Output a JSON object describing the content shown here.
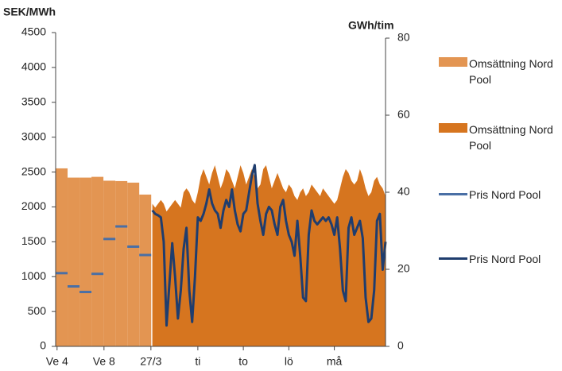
{
  "chart_data": {
    "type": "line",
    "ylabel": "SEK/MWh",
    "y2label": "GWh/tim",
    "xlim": [
      0,
      116
    ],
    "xticks": [
      {
        "value": 0.5,
        "label": "Ve 4"
      },
      {
        "value": 17,
        "label": "Ve 8"
      },
      {
        "value": 33.5,
        "label": "27/3"
      },
      {
        "value": 50,
        "label": "ti"
      },
      {
        "value": 66,
        "label": "to"
      },
      {
        "value": 82,
        "label": "lö"
      },
      {
        "value": 98,
        "label": "må"
      }
    ],
    "ylim": [
      0,
      4500
    ],
    "yticks": [
      0,
      500,
      1000,
      1500,
      2000,
      2500,
      3000,
      3500,
      4000,
      4500
    ],
    "y2lim": [
      0,
      80
    ],
    "y2ticks": [
      0,
      20,
      40,
      60,
      80
    ],
    "series": [
      {
        "name": "Omsättning Nord Pool",
        "type": "area",
        "step": true,
        "axis": "y2",
        "color": "#e39552",
        "x": [
          0,
          4.2,
          8.4,
          12.6,
          16.8,
          21,
          25.2,
          29.4
        ],
        "values": [
          46.2,
          43.8,
          43.8,
          44.0,
          43.0,
          42.9,
          42.5,
          39.4
        ]
      },
      {
        "name": "Omsättning Nord Pool",
        "type": "area",
        "step": false,
        "axis": "y2",
        "color": "#d6751f",
        "x": [
          34,
          35,
          36,
          37,
          38,
          39,
          40,
          41,
          42,
          43,
          44,
          45,
          46,
          47,
          48,
          49,
          50,
          51,
          52,
          53,
          54,
          55,
          56,
          57,
          58,
          59,
          60,
          61,
          62,
          63,
          64,
          65,
          66,
          67,
          68,
          69,
          70,
          71,
          72,
          73,
          74,
          75,
          76,
          77,
          78,
          79,
          80,
          81,
          82,
          83,
          84,
          85,
          86,
          87,
          88,
          89,
          90,
          91,
          92,
          93,
          94,
          95,
          96,
          97,
          98,
          99,
          100,
          101,
          102,
          103,
          104,
          105,
          106,
          107,
          108,
          109,
          110,
          111,
          112,
          113,
          114,
          115,
          116
        ],
        "values": [
          37,
          36,
          37,
          38,
          37,
          35,
          36,
          37,
          38,
          37,
          36,
          40,
          41,
          40,
          38,
          37,
          40,
          44,
          46,
          44,
          42,
          45,
          47,
          44,
          41,
          43,
          46,
          45,
          43,
          41,
          44,
          47,
          45,
          42,
          44,
          46,
          44,
          41,
          42,
          46,
          47,
          44,
          41,
          43,
          45,
          43,
          41,
          40,
          42,
          41,
          39,
          38,
          40,
          41,
          39,
          40,
          42,
          41,
          40,
          39,
          41,
          40,
          39,
          38,
          37,
          38,
          41,
          44,
          46,
          45,
          43,
          42,
          43,
          46,
          44,
          41,
          39,
          40,
          43,
          44,
          42,
          41,
          39
        ]
      },
      {
        "name": "Pris Nord Pool",
        "type": "line",
        "step": true,
        "axis": "y",
        "color": "#4a6fa5",
        "x": [
          0,
          4.2,
          8.4,
          12.6,
          16.8,
          21,
          25.2,
          29.4
        ],
        "values": [
          1050,
          860,
          780,
          1040,
          1540,
          1720,
          1430,
          1310
        ]
      },
      {
        "name": "Pris Nord Pool",
        "type": "line",
        "step": false,
        "axis": "y",
        "color": "#1f3d6e",
        "x": [
          34,
          35,
          36,
          37,
          38,
          39,
          40,
          41,
          42,
          43,
          44,
          45,
          46,
          47,
          48,
          49,
          50,
          51,
          52,
          53,
          54,
          55,
          56,
          57,
          58,
          59,
          60,
          61,
          62,
          63,
          64,
          65,
          66,
          67,
          68,
          69,
          70,
          71,
          72,
          73,
          74,
          75,
          76,
          77,
          78,
          79,
          80,
          81,
          82,
          83,
          84,
          85,
          86,
          87,
          88,
          89,
          90,
          91,
          92,
          93,
          94,
          95,
          96,
          97,
          98,
          99,
          100,
          101,
          102,
          103,
          104,
          105,
          106,
          107,
          108,
          109,
          110,
          111,
          112,
          113,
          114,
          115,
          116
        ],
        "values": [
          1950,
          1900,
          1880,
          1850,
          1500,
          300,
          900,
          1480,
          1000,
          400,
          800,
          1400,
          1700,
          800,
          350,
          1000,
          1850,
          1800,
          1900,
          2050,
          2250,
          2050,
          1950,
          1900,
          1700,
          1950,
          2100,
          2000,
          2250,
          1950,
          1750,
          1650,
          1900,
          1950,
          2200,
          2450,
          2600,
          2050,
          1800,
          1600,
          1900,
          2000,
          1950,
          1750,
          1600,
          2000,
          2100,
          1800,
          1600,
          1500,
          1300,
          1800,
          1300,
          700,
          650,
          1600,
          1950,
          1800,
          1750,
          1800,
          1850,
          1800,
          1850,
          1750,
          1600,
          1850,
          1400,
          800,
          650,
          1700,
          1850,
          1600,
          1700,
          1800,
          1550,
          700,
          350,
          400,
          800,
          1800,
          1900,
          1100,
          1500
        ]
      }
    ]
  }
}
